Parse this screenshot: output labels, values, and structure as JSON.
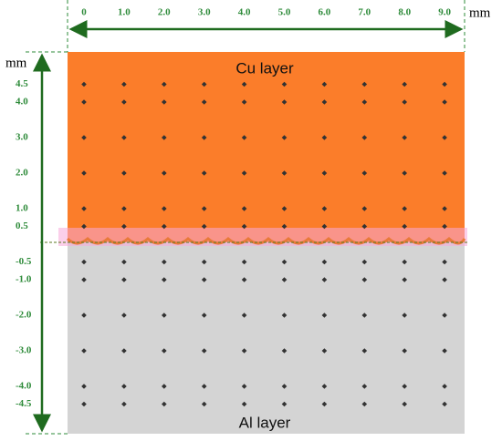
{
  "x_axis": {
    "unit": "mm",
    "ticks": [
      0,
      {
        "value": 1,
        "label": "1.0"
      },
      {
        "value": 2,
        "label": "2.0"
      },
      {
        "value": 3,
        "label": "3.0"
      },
      {
        "value": 4,
        "label": "4.0"
      },
      {
        "value": 5,
        "label": "5.0"
      },
      {
        "value": 6,
        "label": "6.0"
      },
      {
        "value": 7,
        "label": "7.0"
      },
      {
        "value": 8,
        "label": "8.0"
      },
      {
        "value": 9,
        "label": "9.0"
      }
    ]
  },
  "y_axis": {
    "unit": "mm",
    "ticks": [
      4.5,
      {
        "value": 4,
        "label": "4.0"
      },
      {
        "value": 3,
        "label": "3.0"
      },
      {
        "value": 2,
        "label": "2.0"
      },
      {
        "value": 1,
        "label": "1.0"
      },
      0.5,
      -0.5,
      {
        "value": -1,
        "label": "-1.0"
      },
      {
        "value": -2,
        "label": "-2.0"
      },
      {
        "value": -3,
        "label": "-3.0"
      },
      {
        "value": -4,
        "label": "-4.0"
      },
      -4.5
    ]
  },
  "layers": {
    "top": "Cu layer",
    "bottom": "Al layer"
  }
}
